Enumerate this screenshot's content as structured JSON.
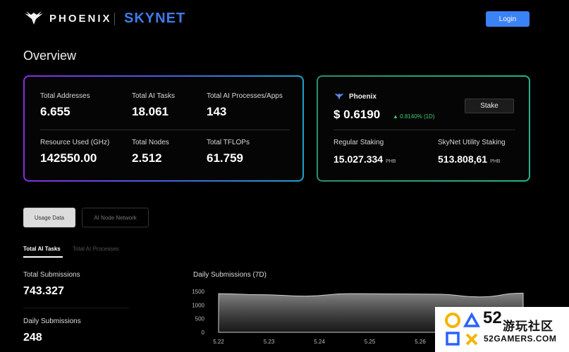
{
  "header": {
    "brand": "PHOENIX",
    "product": "SKYNET",
    "login_label": "Login"
  },
  "page": {
    "title": "Overview"
  },
  "stats": [
    {
      "label": "Total Addresses",
      "value": "6.655"
    },
    {
      "label": "Total AI Tasks",
      "value": "18.061"
    },
    {
      "label": "Total AI Processes/Apps",
      "value": "143"
    },
    {
      "label": "Resource Used (GHz)",
      "value": "142550.00"
    },
    {
      "label": "Total Nodes",
      "value": "2.512"
    },
    {
      "label": "Total TFLOPs",
      "value": "61.759"
    }
  ],
  "phoenix": {
    "name": "Phoenix",
    "price": "$ 0.6190",
    "change": "▲ 0.8140% (1D)",
    "change_color": "#3ecf6e",
    "stake_label": "Stake",
    "regular_label": "Regular Staking",
    "regular_value": "15.027.334",
    "regular_unit": "PHB",
    "utility_label": "SkyNet Utility Staking",
    "utility_value": "513.808,61",
    "utility_unit": "PHB"
  },
  "tabs": {
    "usage": "Usage Data",
    "network": "AI Node Network"
  },
  "subtabs": {
    "tasks": "Total AI Tasks",
    "processes": "Total AI Processes"
  },
  "metrics": {
    "total_label": "Total Submissions",
    "total_value": "743.327",
    "daily_label": "Daily Submissions",
    "daily_value": "248"
  },
  "chart_data": {
    "type": "area",
    "title": "Daily Submissions (7D)",
    "x": [
      "5.22",
      "5.23",
      "5.24",
      "5.25",
      "5.26"
    ],
    "y_ticks": [
      1500,
      1000,
      500,
      0
    ],
    "ylim": [
      0,
      1500
    ],
    "series_values": [
      1420,
      1380,
      1330,
      1420,
      1410,
      1400,
      1300,
      1440
    ]
  },
  "watermark": {
    "number": "52",
    "text": "游玩社区",
    "site": "52GAMERS.COM"
  },
  "colors": {
    "accent": "#3b82f6",
    "skynet": "#3f7bea",
    "stats_border": [
      "#8a2be2",
      "#1ea0c8"
    ],
    "phoenix_border": "#23b28a"
  }
}
